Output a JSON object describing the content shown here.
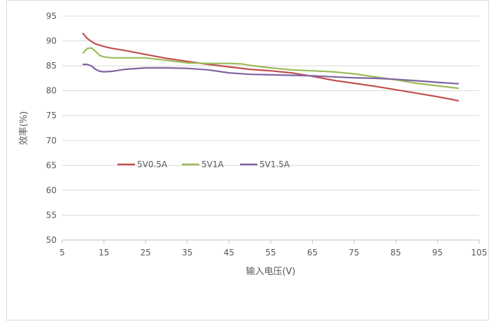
{
  "chart_data": {
    "type": "line",
    "title": "",
    "xlabel": "输入电压(V)",
    "ylabel": "效率(%)",
    "xlim": [
      5,
      105
    ],
    "ylim": [
      50,
      95
    ],
    "xticks": [
      5,
      15,
      25,
      35,
      45,
      55,
      65,
      75,
      85,
      95,
      105
    ],
    "yticks": [
      50,
      55,
      60,
      65,
      70,
      75,
      80,
      85,
      90,
      95
    ],
    "grid": true,
    "legend_position": "center-left",
    "series": [
      {
        "name": "5V0.5A",
        "color": "#c0504d",
        "x": [
          10,
          11,
          12,
          13,
          15,
          17,
          20,
          25,
          30,
          35,
          40,
          45,
          50,
          55,
          60,
          65,
          70,
          75,
          80,
          85,
          90,
          95,
          100
        ],
        "y": [
          91.5,
          90.5,
          89.9,
          89.4,
          88.9,
          88.5,
          88.1,
          87.3,
          86.5,
          85.9,
          85.3,
          84.8,
          84.3,
          84.0,
          83.6,
          82.9,
          82.1,
          81.5,
          80.9,
          80.2,
          79.5,
          78.8,
          78.0
        ]
      },
      {
        "name": "5V1A",
        "color": "#9bbb59",
        "x": [
          10,
          11,
          12,
          13,
          14,
          15,
          17,
          20,
          25,
          30,
          35,
          40,
          45,
          48,
          50,
          55,
          60,
          65,
          70,
          75,
          80,
          85,
          90,
          95,
          100
        ],
        "y": [
          87.6,
          88.5,
          88.6,
          87.9,
          87.1,
          86.8,
          86.6,
          86.6,
          86.6,
          86.1,
          85.6,
          85.5,
          85.5,
          85.4,
          85.1,
          84.6,
          84.2,
          84.0,
          83.8,
          83.4,
          82.8,
          82.2,
          81.5,
          81.0,
          80.5
        ]
      },
      {
        "name": "5V1.5A",
        "color": "#8064a2",
        "x": [
          10,
          11,
          12,
          13,
          14,
          15,
          17,
          20,
          25,
          30,
          35,
          40,
          45,
          50,
          55,
          60,
          65,
          70,
          75,
          80,
          85,
          90,
          95,
          100
        ],
        "y": [
          85.3,
          85.3,
          85.0,
          84.3,
          83.9,
          83.8,
          83.9,
          84.3,
          84.6,
          84.6,
          84.5,
          84.2,
          83.6,
          83.3,
          83.2,
          83.1,
          83.0,
          82.8,
          82.6,
          82.5,
          82.3,
          82.0,
          81.7,
          81.4
        ]
      }
    ]
  }
}
